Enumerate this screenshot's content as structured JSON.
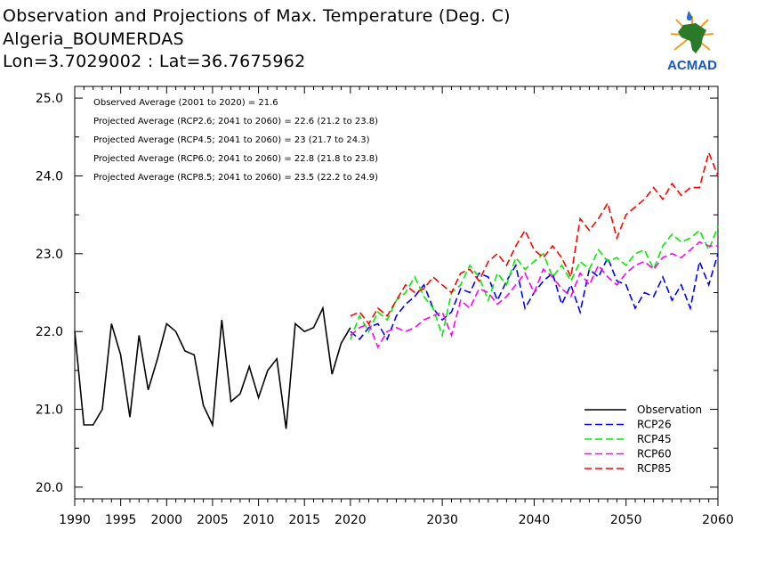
{
  "header": {
    "title": "Observation and Projections of Max. Temperature (Deg. C)",
    "location": "Algeria_BOUMERDAS",
    "coords": "Lon=3.7029002 : Lat=36.7675962"
  },
  "logo": {
    "text": "ACMAD",
    "icon": "africa-map-water-drop-logo"
  },
  "annotations": [
    "Observed Average (2001 to 2020) = 21.6",
    "Projected Average (RCP2.6; 2041 to 2060) = 22.6 (21.2 to 23.8)",
    "Projected Average (RCP4.5; 2041 to 2060) = 23 (21.7 to 24.3)",
    "Projected Average (RCP6.0; 2041 to 2060) = 22.8 (21.8 to 23.8)",
    "Projected Average (RCP8.5; 2041 to 2060) = 23.5 (22.2 to 24.9)"
  ],
  "chart_data": {
    "type": "line",
    "xlim": [
      1990,
      2060
    ],
    "ylim": [
      19.85,
      25.15
    ],
    "yticks": [
      20.0,
      21.0,
      22.0,
      23.0,
      24.0,
      25.0
    ],
    "ytick_labels": [
      "20.0",
      "21.0",
      "22.0",
      "23.0",
      "24.0",
      "25.0"
    ],
    "xtick_labels": [
      {
        "x": 1990,
        "label": "1990"
      },
      {
        "x": 1995,
        "label": "1995"
      },
      {
        "x": 2000,
        "label": "2000"
      },
      {
        "x": 2005,
        "label": "2005"
      },
      {
        "x": 2010,
        "label": "2010"
      },
      {
        "x": 2015,
        "label": "2015"
      },
      {
        "x": 2020,
        "label": "2020"
      },
      {
        "x": 2030,
        "label": "2030"
      },
      {
        "x": 2040,
        "label": "2040"
      },
      {
        "x": 2050,
        "label": "2050"
      },
      {
        "x": 2060,
        "label": "2060"
      }
    ],
    "legend_position": "bottom-right",
    "series": [
      {
        "name": "Observation",
        "color": "#000000",
        "dashed": false,
        "x": [
          1990,
          1991,
          1992,
          1993,
          1994,
          1995,
          1996,
          1997,
          1998,
          1999,
          2000,
          2001,
          2002,
          2003,
          2004,
          2005,
          2006,
          2007,
          2008,
          2009,
          2010,
          2011,
          2012,
          2013,
          2014,
          2015,
          2016,
          2017,
          2018,
          2019,
          2020
        ],
        "y": [
          22.0,
          20.8,
          20.8,
          21.0,
          22.1,
          21.7,
          20.9,
          21.95,
          21.25,
          21.65,
          22.1,
          22.0,
          21.75,
          21.7,
          21.05,
          20.8,
          22.15,
          21.1,
          21.2,
          21.55,
          21.15,
          21.5,
          21.65,
          20.75,
          22.1,
          22.0,
          22.05,
          22.3,
          21.45,
          21.85,
          22.05
        ]
      },
      {
        "name": "RCP26",
        "color": "#0000ff",
        "dashed": true,
        "x": [
          2020,
          2021,
          2022,
          2023,
          2024,
          2025,
          2026,
          2027,
          2028,
          2029,
          2030,
          2031,
          2032,
          2033,
          2034,
          2035,
          2036,
          2037,
          2038,
          2039,
          2040,
          2041,
          2042,
          2043,
          2044,
          2045,
          2046,
          2047,
          2048,
          2049,
          2050,
          2051,
          2052,
          2053,
          2054,
          2055,
          2056,
          2057,
          2058,
          2059,
          2060
        ],
        "y": [
          22.0,
          21.9,
          22.05,
          22.1,
          21.9,
          22.2,
          22.35,
          22.45,
          22.6,
          22.3,
          22.15,
          22.25,
          22.55,
          22.5,
          22.75,
          22.7,
          22.4,
          22.65,
          22.85,
          22.3,
          22.5,
          22.65,
          22.75,
          22.35,
          22.6,
          22.25,
          22.8,
          22.7,
          22.95,
          22.65,
          22.6,
          22.3,
          22.5,
          22.45,
          22.7,
          22.4,
          22.6,
          22.3,
          22.9,
          22.6,
          23.0
        ]
      },
      {
        "name": "RCP45",
        "color": "#00ee00",
        "dashed": true,
        "x": [
          2020,
          2021,
          2022,
          2023,
          2024,
          2025,
          2026,
          2027,
          2028,
          2029,
          2030,
          2031,
          2032,
          2033,
          2034,
          2035,
          2036,
          2037,
          2038,
          2039,
          2040,
          2041,
          2042,
          2043,
          2044,
          2045,
          2046,
          2047,
          2048,
          2049,
          2050,
          2051,
          2052,
          2053,
          2054,
          2055,
          2056,
          2057,
          2058,
          2059,
          2060
        ],
        "y": [
          21.9,
          22.2,
          22.0,
          22.25,
          22.15,
          22.4,
          22.5,
          22.7,
          22.45,
          22.3,
          21.95,
          22.5,
          22.6,
          22.85,
          22.7,
          22.4,
          22.75,
          22.6,
          22.95,
          22.8,
          22.9,
          23.0,
          22.7,
          22.85,
          22.65,
          22.9,
          22.8,
          23.05,
          22.9,
          22.95,
          22.85,
          23.0,
          23.05,
          22.8,
          23.1,
          23.25,
          23.15,
          23.2,
          23.3,
          23.05,
          23.35
        ]
      },
      {
        "name": "RCP60",
        "color": "#ff00ff",
        "dashed": true,
        "x": [
          2020,
          2021,
          2022,
          2023,
          2024,
          2025,
          2026,
          2027,
          2028,
          2029,
          2030,
          2031,
          2032,
          2033,
          2034,
          2035,
          2036,
          2037,
          2038,
          2039,
          2040,
          2041,
          2042,
          2043,
          2044,
          2045,
          2046,
          2047,
          2048,
          2049,
          2050,
          2051,
          2052,
          2053,
          2054,
          2055,
          2056,
          2057,
          2058,
          2059,
          2060
        ],
        "y": [
          21.95,
          22.05,
          22.1,
          21.8,
          22.0,
          22.05,
          22.0,
          22.05,
          22.15,
          22.2,
          22.25,
          21.95,
          22.4,
          22.3,
          22.55,
          22.5,
          22.35,
          22.45,
          22.6,
          22.75,
          22.5,
          22.8,
          22.7,
          22.55,
          22.45,
          22.75,
          22.6,
          22.85,
          22.7,
          22.6,
          22.75,
          22.85,
          22.9,
          22.8,
          22.95,
          23.0,
          22.95,
          23.05,
          23.15,
          23.1,
          23.1
        ]
      },
      {
        "name": "RCP85",
        "color": "#ff0000",
        "dashed": true,
        "x": [
          2020,
          2021,
          2022,
          2023,
          2024,
          2025,
          2026,
          2027,
          2028,
          2029,
          2030,
          2031,
          2032,
          2033,
          2034,
          2035,
          2036,
          2037,
          2038,
          2039,
          2040,
          2041,
          2042,
          2043,
          2044,
          2045,
          2046,
          2047,
          2048,
          2049,
          2050,
          2051,
          2052,
          2053,
          2054,
          2055,
          2056,
          2057,
          2058,
          2059,
          2060
        ],
        "y": [
          22.2,
          22.25,
          22.1,
          22.3,
          22.2,
          22.4,
          22.6,
          22.5,
          22.55,
          22.7,
          22.6,
          22.5,
          22.75,
          22.8,
          22.65,
          22.9,
          23.0,
          22.85,
          23.1,
          23.3,
          23.05,
          22.95,
          23.1,
          22.95,
          22.7,
          23.45,
          23.3,
          23.45,
          23.65,
          23.2,
          23.5,
          23.6,
          23.7,
          23.85,
          23.7,
          23.9,
          23.75,
          23.85,
          23.85,
          24.3,
          24.0
        ]
      }
    ]
  }
}
